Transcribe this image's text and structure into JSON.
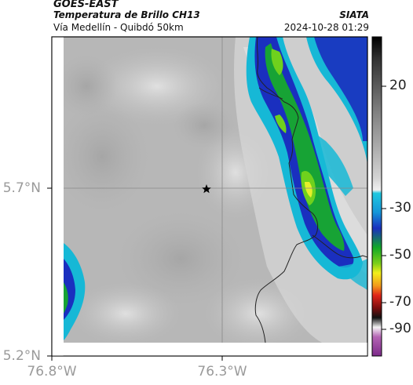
{
  "header": {
    "satellite": "GOES-EAST",
    "product": "Temperatura de Brillo CH13",
    "region": "Vía Medellín - Quibdó 50km",
    "organization": "SIATA",
    "timestamp": "2024-10-28 01:29"
  },
  "axes": {
    "lat_labels": [
      "5.7°N",
      "5.2°N"
    ],
    "lon_labels": [
      "76.8°W",
      "76.3°W"
    ]
  },
  "colorbar": {
    "tick_labels": [
      "20",
      "-30",
      "-50",
      "-70",
      "-90"
    ],
    "colors": {
      "warm_top": "#000000",
      "warm_gray": "#bdbdbd",
      "cyan": "#00bcd4",
      "blue": "#1a2fbf",
      "green": "#1ea01e",
      "yellow": "#f2ef1a",
      "red": "#e0261b",
      "dark": "#2a1010",
      "pink": "#d05ac8"
    }
  },
  "marker": {
    "icon": "star-icon"
  }
}
